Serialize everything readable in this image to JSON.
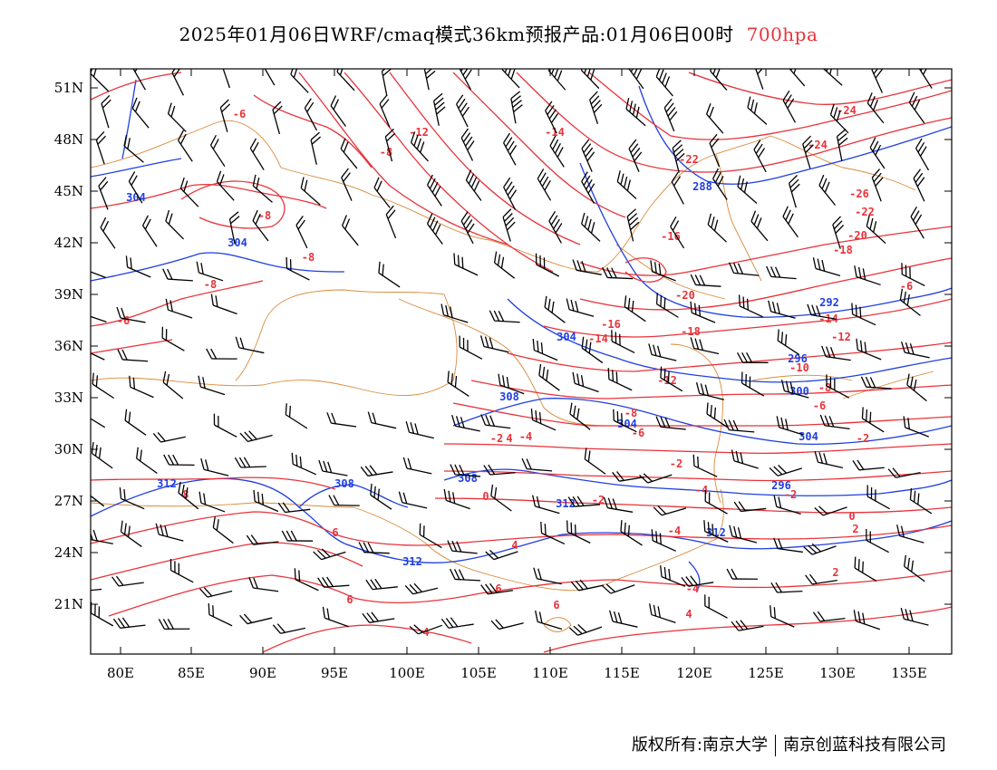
{
  "title": {
    "main": "2025年01月06日WRF/cmaq模式36km预报产品:01月06日00时",
    "level": "700hpa"
  },
  "colors": {
    "height_contour": "#1f3fe0",
    "temperature_contour": "#e8333a",
    "boundary": "#d98a3a",
    "wind_barb": "#000000",
    "level_text": "#e8333a"
  },
  "axes": {
    "lat_labels": [
      "51N",
      "48N",
      "45N",
      "42N",
      "39N",
      "36N",
      "33N",
      "30N",
      "27N",
      "24N",
      "21N"
    ],
    "lon_labels": [
      "80E",
      "85E",
      "90E",
      "95E",
      "100E",
      "105E",
      "110E",
      "115E",
      "120E",
      "125E",
      "130E",
      "135E"
    ]
  },
  "height_labels": [
    "304",
    "304",
    "288",
    "292",
    "296",
    "304",
    "300",
    "308",
    "304",
    "296",
    "304",
    "308",
    "312",
    "308",
    "312",
    "312",
    "312"
  ],
  "temp_labels": [
    "-6",
    "-8",
    "-12",
    "-14",
    "-22",
    "-24",
    "-24",
    "-26",
    "-22",
    "-20",
    "-18",
    "-16",
    "-8",
    "-8",
    "-8",
    "-6",
    "-6",
    "-20",
    "-16",
    "-18",
    "-14",
    "-14",
    "-12",
    "-12",
    "-10",
    "-8",
    "-6",
    "-2",
    "-8",
    "-6",
    "-4",
    "-2",
    "-2",
    "-4",
    "-2",
    "0",
    "-2",
    "0",
    "2",
    "4",
    "-4",
    "-4",
    "2",
    "6",
    "4",
    "6",
    "4",
    "6",
    "8",
    "6",
    "4"
  ],
  "footer": {
    "left": "版权所有:南京大学",
    "right": "南京创蓝科技有限公司"
  }
}
